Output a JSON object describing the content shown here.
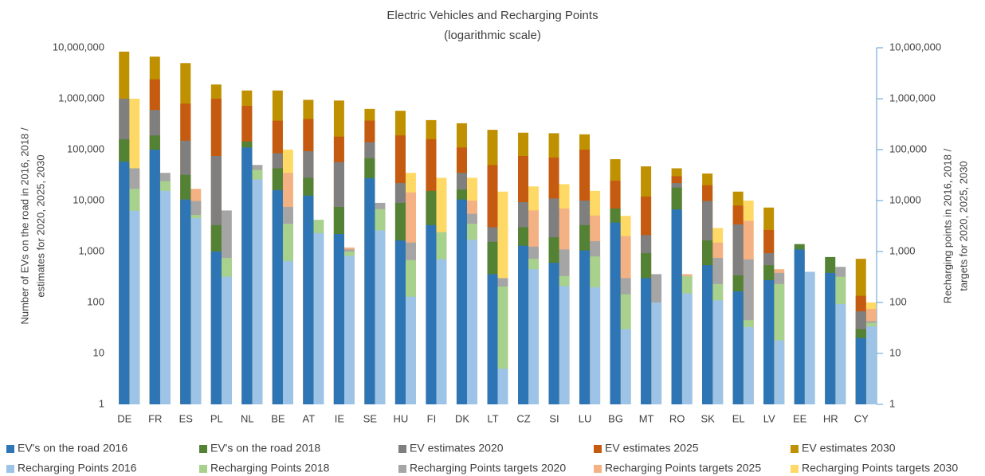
{
  "chart_data": {
    "type": "bar",
    "title": "Electric Vehicles and Recharging Points",
    "subtitle": "(logarithmic scale)",
    "ylabel": [
      "Number of EVs on the road in 2016, 2018 /",
      "estimates for 2020, 2025, 2030"
    ],
    "y2label": [
      "Recharging points in 2016, 2018 /",
      "targets for 2020, 2025, 2030"
    ],
    "log_scale": true,
    "categories": [
      "DE",
      "FR",
      "ES",
      "PL",
      "NL",
      "BE",
      "AT",
      "IE",
      "SE",
      "HU",
      "FI",
      "DK",
      "LT",
      "CZ",
      "SI",
      "LU",
      "BG",
      "MT",
      "RO",
      "SK",
      "EL",
      "LV",
      "EE",
      "HR",
      "CY"
    ],
    "ylim": [
      1,
      10000000
    ],
    "yticks": [
      1,
      10,
      100,
      {
        "value": 1000,
        "label": "1,000"
      },
      {
        "value": 10000,
        "label": "10,000"
      },
      {
        "value": 100000,
        "label": "100,000"
      },
      {
        "value": 1000000,
        "label": "1,000,000"
      },
      {
        "value": 10000000,
        "label": "10,000,000"
      }
    ],
    "y2lim": [
      1,
      10000000
    ],
    "y2ticks": [
      1,
      10,
      100,
      {
        "value": 1000,
        "label": "1,000"
      },
      {
        "value": 10000,
        "label": "10,000"
      },
      {
        "value": 100000,
        "label": "100,000"
      },
      {
        "value": 1000000,
        "label": "1,000,000"
      },
      {
        "value": 10000000,
        "label": "10,000,000"
      }
    ],
    "series": [
      {
        "name": "EV's on the road 2016",
        "color": "#2e75b6",
        "values": [
          58000,
          100000,
          10500,
          1000,
          110000,
          16000,
          12500,
          2200,
          27500,
          1650,
          3300,
          10500,
          360,
          1300,
          600,
          1050,
          3700,
          300,
          6700,
          540,
          165,
          275,
          1100,
          380,
          20
        ]
      },
      {
        "name": "EV's on the road 2018",
        "color": "#548235",
        "values": [
          160000,
          190000,
          32000,
          3300,
          145000,
          43000,
          28000,
          7500,
          68000,
          9000,
          15500,
          16500,
          1550,
          3000,
          1900,
          3300,
          7000,
          930,
          18000,
          1650,
          340,
          540,
          1400,
          780,
          30
        ]
      },
      {
        "name": "EV estimates 2020",
        "color": "#7f7f7f",
        "values": [
          1000000,
          600000,
          150000,
          75000,
          null,
          85000,
          93000,
          57000,
          140000,
          22000,
          null,
          35000,
          3000,
          9300,
          11000,
          10000,
          null,
          2100,
          22000,
          9800,
          3400,
          930,
          null,
          null,
          67
        ]
      },
      {
        "name": "EV estimates 2025",
        "color": "#c55a11",
        "values": [
          null,
          2400000,
          800000,
          1000000,
          720000,
          370000,
          400000,
          180000,
          370000,
          190000,
          160000,
          110000,
          50000,
          75000,
          70000,
          100000,
          24500,
          12000,
          30000,
          20000,
          8000,
          2650,
          null,
          null,
          135
        ]
      },
      {
        "name": "EV estimates 2030",
        "color": "#bf9000",
        "values": [
          8400000,
          6700000,
          5000000,
          1900000,
          1450000,
          1450000,
          950000,
          920000,
          630000,
          580000,
          380000,
          330000,
          245000,
          215000,
          210000,
          200000,
          65000,
          47000,
          43000,
          34000,
          15000,
          7300,
          null,
          null,
          720
        ]
      },
      {
        "name": "Recharging Points 2016",
        "color": "#9dc3e6",
        "axis": "y2",
        "values": [
          6300,
          15500,
          4500,
          320,
          26000,
          650,
          2300,
          820,
          2600,
          130,
          700,
          1700,
          5,
          450,
          210,
          200,
          30,
          100,
          150,
          110,
          33,
          18,
          400,
          93,
          34
        ]
      },
      {
        "name": "Recharging Points 2018",
        "color": "#a9d18e",
        "axis": "y2",
        "values": [
          17000,
          24000,
          5200,
          750,
          40000,
          3500,
          4200,
          1000,
          6800,
          680,
          2400,
          3500,
          205,
          720,
          330,
          800,
          145,
          null,
          330,
          230,
          45,
          230,
          null,
          320,
          40
        ]
      },
      {
        "name": "Recharging Points targets 2020",
        "color": "#a5a5a5",
        "axis": "y2",
        "values": [
          43000,
          35000,
          9800,
          6400,
          50000,
          7500,
          null,
          1100,
          9000,
          1500,
          null,
          5500,
          300,
          1250,
          1100,
          1600,
          300,
          360,
          null,
          750,
          700,
          380,
          null,
          500,
          43
        ]
      },
      {
        "name": "Recharging Points targets 2025",
        "color": "#f4b183",
        "axis": "y2",
        "values": [
          null,
          null,
          17000,
          null,
          null,
          35000,
          null,
          1200,
          null,
          14500,
          null,
          10000,
          null,
          6400,
          7000,
          5100,
          2000,
          null,
          360,
          1500,
          4000,
          450,
          null,
          null,
          75
        ]
      },
      {
        "name": "Recharging Points targets 2030",
        "color": "#ffd966",
        "axis": "y2",
        "values": [
          1000000,
          null,
          null,
          null,
          null,
          100000,
          null,
          null,
          null,
          35000,
          28000,
          28000,
          15000,
          19000,
          21000,
          15500,
          5000,
          null,
          null,
          2900,
          10000,
          null,
          null,
          null,
          100
        ]
      }
    ]
  }
}
